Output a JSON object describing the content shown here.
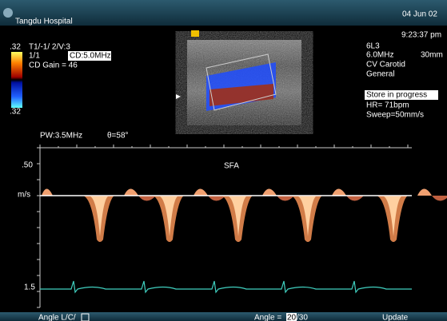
{
  "header": {
    "hospital": "Tangdu Hospital",
    "date": "04 Jun 02",
    "time": "9:23:37 pm"
  },
  "left_panel": {
    "scale_top": ".32",
    "mode": "T1/-1/ 2/V:3",
    "frame": "1/1",
    "frequency": "CD:5.0MHz",
    "gain": "CD Gain = 46",
    "scale_bottom": ".32"
  },
  "right_panel": {
    "probe": "6L3",
    "frequency": "6.0MHz",
    "depth": "30mm",
    "preset": "CV Carotid",
    "mode": "General",
    "status": "Store in progress",
    "heart_rate": "HR= 71bpm",
    "sweep": "Sweep=50mm/s"
  },
  "doppler": {
    "pw": "PW:3.5MHz",
    "angle": "θ=58°",
    "scale_top": ".50",
    "unit": "m/s",
    "label": "SFA",
    "scale_bottom": "1.5"
  },
  "footer": {
    "angle_side": "Angle L/C/",
    "angle_label": "Angle =",
    "angle_value": "20",
    "angle_max": "/30",
    "update": "Update"
  }
}
